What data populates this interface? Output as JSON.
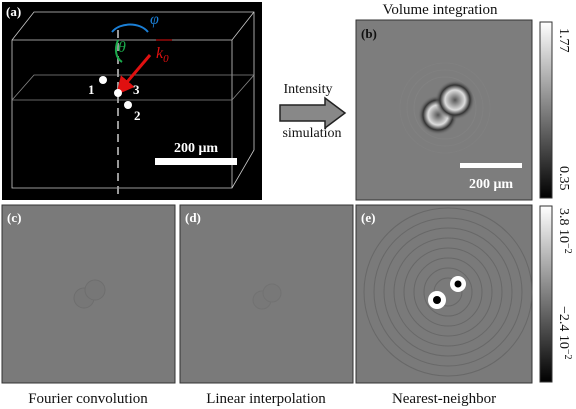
{
  "panels": [
    {
      "label": "(a)"
    },
    {
      "label": "(b)",
      "title": "Volume integration"
    },
    {
      "label": "(c)",
      "caption": "Fourier convolution"
    },
    {
      "label": "(d)",
      "caption": "Linear interpolation"
    },
    {
      "label": "(e)",
      "caption": "Nearest-neighbor"
    }
  ],
  "annotations": {
    "phi": "φ",
    "theta": "θ",
    "k": "k",
    "k_sub": "0",
    "points": [
      "1",
      "2",
      "3"
    ],
    "scale_bar_a": "200 μm",
    "scale_bar_b": "200 μm"
  },
  "arrow": {
    "top": "Intensity",
    "bottom": "simulation"
  },
  "colorbars": [
    {
      "max": "1.77",
      "min": "0.35"
    },
    {
      "max": {
        "mantissa": "3.8",
        "base": "10",
        "exponent": "−2"
      },
      "min": {
        "mantissa": "−2.4",
        "base": "10",
        "exponent": "−2"
      }
    }
  ]
}
